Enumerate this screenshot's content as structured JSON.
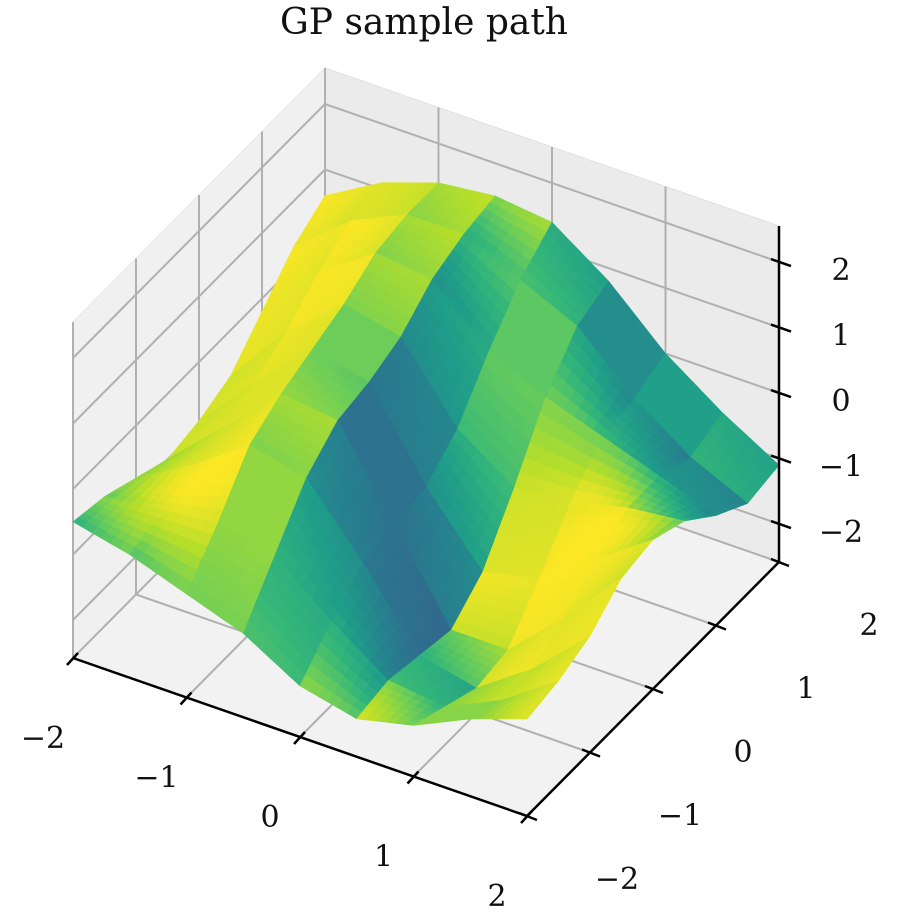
{
  "chart_data": {
    "type": "surface",
    "title": "GP sample path",
    "xlabel": "",
    "ylabel": "",
    "zlabel": "",
    "x_ticks": [
      "−2",
      "−1",
      "0",
      "1",
      "2"
    ],
    "y_ticks": [
      "−2",
      "−1",
      "0",
      "1",
      "2"
    ],
    "z_ticks": [
      "−2",
      "−1",
      "0",
      "1",
      "2"
    ],
    "xlim": [
      -2,
      2
    ],
    "ylim": [
      -2,
      2
    ],
    "zlim": [
      -2.5,
      2.5
    ],
    "colormap": "viridis",
    "grid": true,
    "x": [
      -2,
      -1.5,
      -1,
      -0.5,
      0,
      0.5,
      1,
      1.5,
      2
    ],
    "y": [
      -2,
      -1.5,
      -1,
      -0.5,
      0,
      0.5,
      1,
      1.5,
      2
    ],
    "z": [
      [
        -0.5,
        -0.6,
        -0.8,
        -1.0,
        -0.9,
        -0.7,
        -0.2,
        0.3,
        0.6
      ],
      [
        -0.7,
        -0.5,
        -0.3,
        -0.2,
        0.0,
        0.3,
        0.7,
        1.0,
        1.1
      ],
      [
        -1.0,
        -0.4,
        0.3,
        0.6,
        0.8,
        1.0,
        1.3,
        1.4,
        1.4
      ],
      [
        -1.3,
        -0.6,
        0.1,
        0.5,
        0.6,
        0.8,
        1.2,
        1.4,
        1.5
      ],
      [
        -1.8,
        -1.3,
        -0.9,
        -0.8,
        -0.7,
        -0.3,
        0.4,
        1.0,
        1.4
      ],
      [
        -2.0,
        -1.9,
        -2.0,
        -2.1,
        -1.7,
        -0.9,
        0.0,
        0.6,
        0.8
      ],
      [
        -1.8,
        -2.0,
        -2.2,
        -2.1,
        -1.5,
        -0.8,
        -0.3,
        -0.2,
        0.0
      ],
      [
        -1.4,
        -1.6,
        -1.6,
        -1.3,
        -0.9,
        -0.6,
        -0.6,
        -0.8,
        -0.6
      ],
      [
        -1.1,
        -1.0,
        -0.8,
        -0.4,
        -0.3,
        -0.5,
        -0.9,
        -1.2,
        -1.1
      ]
    ]
  }
}
